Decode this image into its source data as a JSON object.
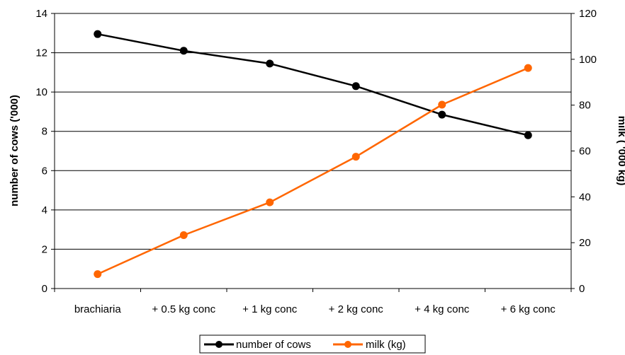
{
  "chart_data": {
    "type": "line",
    "title": "",
    "categories": [
      "brachiaria",
      "+ 0.5 kg conc",
      "+ 1 kg conc",
      "+ 2 kg conc",
      "+ 4 kg conc",
      "+ 6 kg conc"
    ],
    "ylabel": "number of cows ('000)",
    "y2label": "milk ( '000 kg)",
    "ylim": [
      0,
      14
    ],
    "y2lim": [
      0,
      120
    ],
    "yticks": [
      "0",
      "2",
      "4",
      "6",
      "8",
      "10",
      "12",
      "14"
    ],
    "y2ticks": [
      "0",
      "20",
      "40",
      "60",
      "80",
      "100",
      "120"
    ],
    "grid": true,
    "legend_position": "bottom",
    "series": [
      {
        "name": "number of cows",
        "axis": "left",
        "color": "#000000",
        "values": [
          12.95,
          12.1,
          11.45,
          10.3,
          8.85,
          7.8
        ]
      },
      {
        "name": "milk (kg)",
        "axis": "right",
        "color": "#ff6600",
        "values": [
          6.3,
          23.3,
          37.6,
          57.5,
          80.2,
          96.2
        ]
      }
    ]
  }
}
